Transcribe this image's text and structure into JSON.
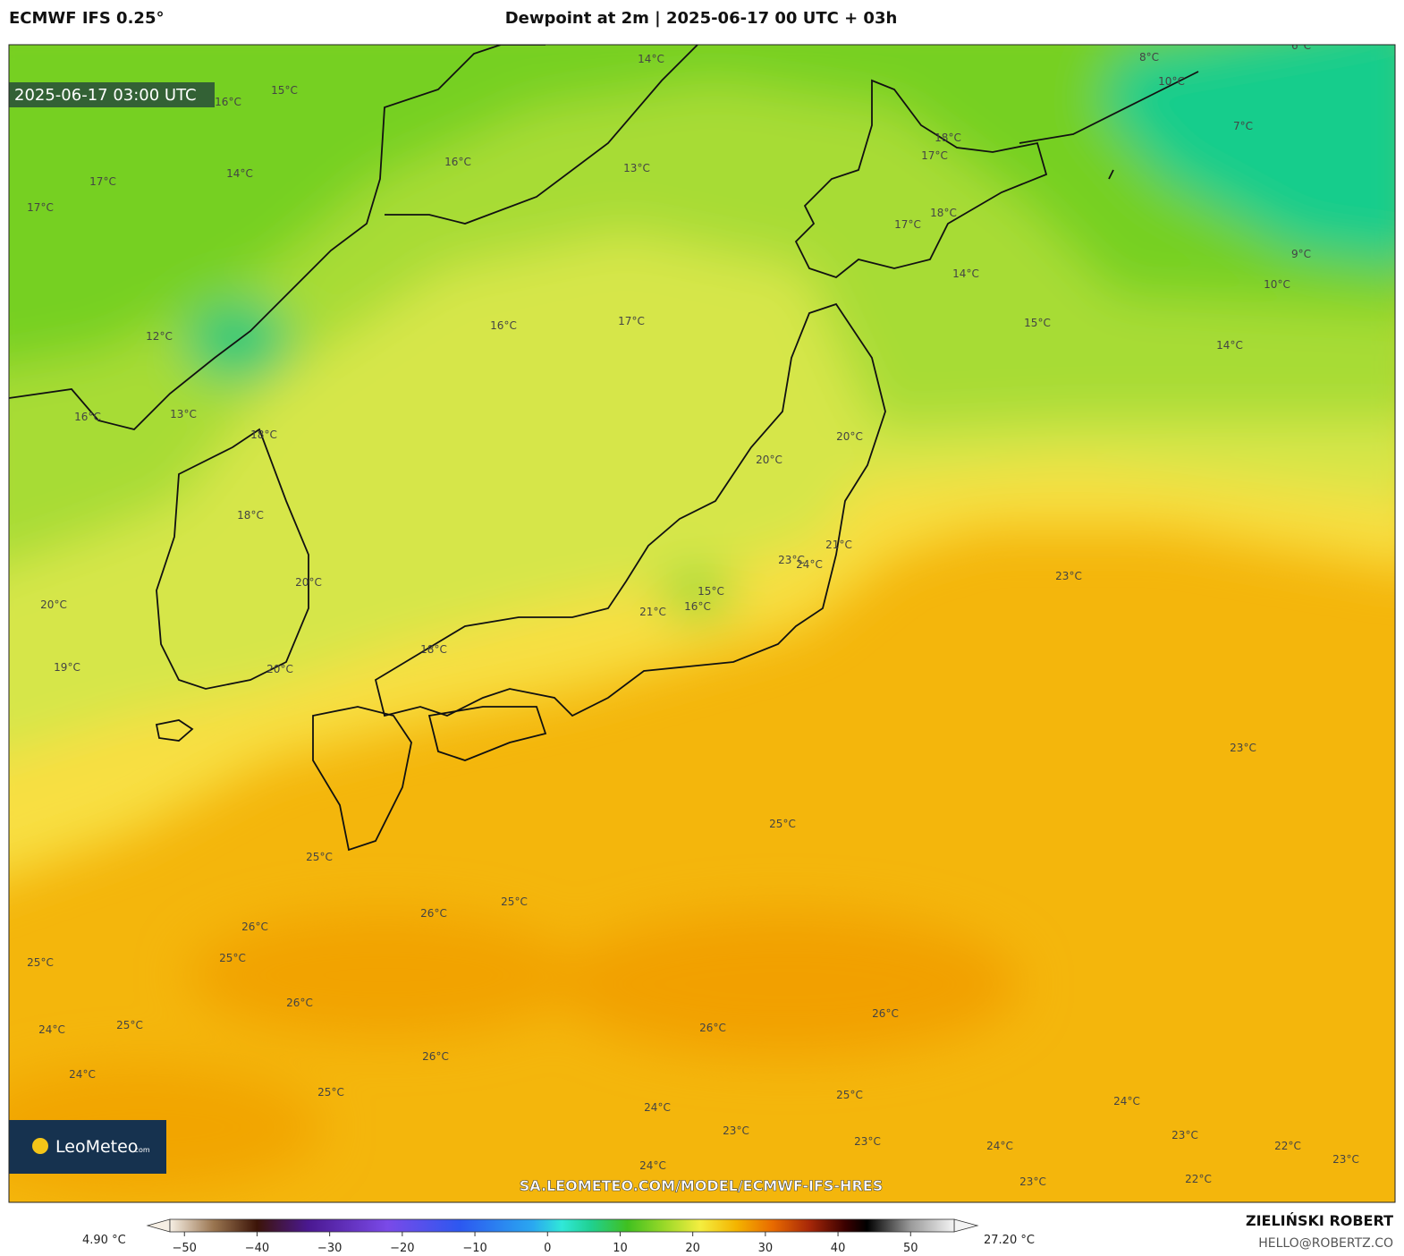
{
  "header": {
    "model": "ECMWF IFS 0.25°",
    "title": "Dewpoint at 2m | 2025-06-17 00 UTC + 03h"
  },
  "map": {
    "valid_time": "2025-06-17 03:00 UTC",
    "watermark": "SA.LEOMETEO.COM/MODEL/ECMWF-IFS-HRES",
    "contour_labels": [
      "16°C",
      "15°C",
      "14°C",
      "17°C",
      "17°C",
      "16°C",
      "13°C",
      "14°C",
      "18°C",
      "17°C",
      "18°C",
      "17°C",
      "14°C",
      "8°C",
      "6°C",
      "10°C",
      "7°C",
      "9°C",
      "10°C",
      "15°C",
      "14°C",
      "16°C",
      "17°C",
      "12°C",
      "13°C",
      "16°C",
      "18°C",
      "20°C",
      "20°C",
      "18°C",
      "21°C",
      "23°C",
      "24°C",
      "23°C",
      "20°C",
      "20°C",
      "15°C",
      "16°C",
      "21°C",
      "18°C",
      "19°C",
      "20°C",
      "23°C",
      "25°C",
      "25°C",
      "26°C",
      "25°C",
      "26°C",
      "25°C",
      "25°C",
      "26°C",
      "26°C",
      "26°C",
      "25°C",
      "24°C",
      "26°C",
      "24°C",
      "25°C",
      "25°C",
      "24°C",
      "24°C",
      "23°C",
      "23°C",
      "24°C",
      "23°C",
      "22°C",
      "23°C",
      "24°C",
      "22°C",
      "23°C"
    ]
  },
  "logo": {
    "name": "LeoMeteo",
    "suffix": ".com"
  },
  "colorbar": {
    "min_label": "4.90 °C",
    "max_label": "27.20 °C",
    "range": [
      -52,
      56
    ],
    "ticks": [
      {
        "value": -50,
        "label": "−50"
      },
      {
        "value": -40,
        "label": "−40"
      },
      {
        "value": -30,
        "label": "−30"
      },
      {
        "value": -20,
        "label": "−20"
      },
      {
        "value": -10,
        "label": "−10"
      },
      0,
      10,
      20,
      30,
      40,
      50
    ]
  },
  "credit": {
    "author": "ZIELIŃSKI ROBERT",
    "email": "HELLO@ROBERTZ.CO"
  }
}
